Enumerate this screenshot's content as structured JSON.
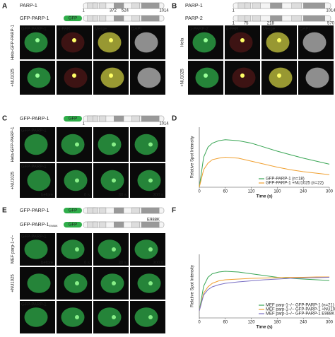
{
  "panels": [
    {
      "label": "A",
      "constructs": [
        {
          "name": "PARP-1",
          "positions": [
            1,
            372,
            524,
            1014
          ]
        },
        {
          "name": "GFP-PARP-1",
          "tag": "GFP"
        }
      ],
      "channels": [
        "GFP-PARP-1",
        "α-PAR",
        "Merge",
        "DAPI"
      ],
      "row_labels": [
        "Hela-GFP-PARP-1",
        "+NU1025"
      ]
    },
    {
      "label": "B",
      "constructs": [
        {
          "name": "PARP-1",
          "positions": [
            1,
            1014
          ]
        },
        {
          "name": "PARP-2",
          "positions": [
            1,
            75,
            218,
            570
          ]
        }
      ],
      "channels": [
        "α-PARP-2",
        "α-PAR",
        "Merge",
        "DAPI"
      ],
      "row_labels": [
        "Hela",
        "+NU1025"
      ]
    },
    {
      "label": "C",
      "constructs": [
        {
          "name": "GFP-PARP-1",
          "tag": "GFP",
          "positions": [
            1,
            1014
          ]
        }
      ],
      "overlays": [
        "GFP-PARP-1",
        "GFP-PARP-1"
      ],
      "timepoints": [
        "before",
        "0 s",
        "30 s",
        "300 s"
      ],
      "row_labels": [
        "Hela-GFP-PARP-1",
        "+NU1025"
      ]
    },
    {
      "label": "E",
      "constructs": [
        {
          "name": "GFP-PARP-1",
          "tag": "GFP"
        },
        {
          "name": "GFP-PARP-1",
          "subscript": "E988K",
          "tag": "GFP",
          "mutation": "E988K"
        }
      ],
      "overlays": [
        "GFP-PARP-1",
        "",
        "GFP-PARP-1"
      ],
      "timepoints": [
        "before",
        "0 s",
        "30 s",
        "300 s"
      ],
      "row_labels": [
        "MEF parp-1−/−",
        "+NU1025"
      ]
    }
  ],
  "charts": [
    {
      "label": "D",
      "type": "line",
      "x_label": "Time (s)",
      "y_label": "Relative Spot Intensity",
      "x": [
        0,
        10,
        20,
        30,
        45,
        60,
        90,
        120,
        150,
        180,
        210,
        240,
        270,
        300
      ],
      "xlim": [
        0,
        300
      ],
      "xticks": [
        0,
        60,
        120,
        180,
        240,
        300
      ],
      "ylim": [
        1,
        2.2
      ],
      "series": [
        {
          "name": "GFP-PARP-1 (n=18)",
          "color": "#3aa655",
          "values": [
            1.0,
            1.6,
            1.8,
            1.88,
            1.93,
            1.95,
            1.93,
            1.88,
            1.8,
            1.72,
            1.65,
            1.58,
            1.52,
            1.46
          ]
        },
        {
          "name": "GFP-PARP-1 +NU1025 (n=22)",
          "color": "#f0a030",
          "values": [
            1.0,
            1.35,
            1.48,
            1.55,
            1.58,
            1.6,
            1.58,
            1.52,
            1.46,
            1.4,
            1.35,
            1.31,
            1.28,
            1.25
          ]
        }
      ],
      "legend": "lower right"
    },
    {
      "label": "F",
      "type": "line",
      "x_label": "Time (s)",
      "y_label": "Relative Spot Intensity",
      "x": [
        0,
        10,
        20,
        30,
        45,
        60,
        90,
        120,
        150,
        180,
        210,
        240,
        270,
        300
      ],
      "xlim": [
        0,
        300
      ],
      "xticks": [
        0,
        60,
        120,
        180,
        240,
        300
      ],
      "ylim": [
        0.8,
        2.6
      ],
      "series": [
        {
          "name": "MEF parp-1−/− GFP-PARP-1 (n=21)",
          "color": "#3aa655",
          "values": [
            1.0,
            1.7,
            1.95,
            2.05,
            2.1,
            2.12,
            2.1,
            2.05,
            2.0,
            1.95,
            1.92,
            1.9,
            1.88,
            1.86
          ]
        },
        {
          "name": "MEF parp-1−/− GFP-PARP-1 +NU1025 (n=30)",
          "color": "#f0a030",
          "values": [
            1.0,
            1.5,
            1.68,
            1.78,
            1.85,
            1.88,
            1.9,
            1.92,
            1.93,
            1.94,
            1.95,
            1.95,
            1.96,
            1.96
          ]
        },
        {
          "name": "MEF parp-1−/− GFP-PARP-1 E988K (n=20)",
          "color": "#7a6fc4",
          "values": [
            1.0,
            1.45,
            1.6,
            1.68,
            1.74,
            1.78,
            1.82,
            1.85,
            1.88,
            1.9,
            1.92,
            1.93,
            1.94,
            1.95
          ]
        }
      ],
      "legend": "lower right"
    }
  ]
}
